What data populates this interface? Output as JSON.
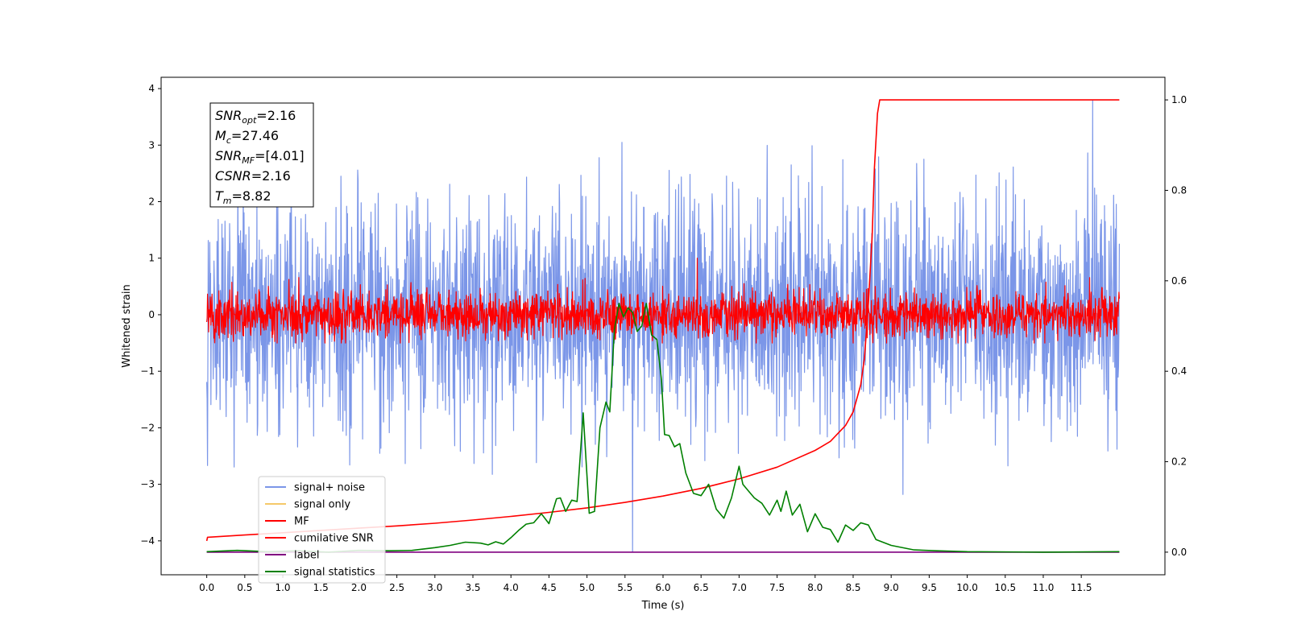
{
  "chart_data": {
    "type": "line",
    "xlabel": "Time (s)",
    "ylabel": "Whitened strain",
    "xlim": [
      -0.6,
      12.6
    ],
    "ylim_left": [
      -4.6,
      4.2
    ],
    "ylim_right": [
      -0.05,
      1.05
    ],
    "x_ticks": [
      0.0,
      0.5,
      1.0,
      1.5,
      2.0,
      2.5,
      3.0,
      3.5,
      4.0,
      4.5,
      5.0,
      5.5,
      6.0,
      6.5,
      7.0,
      7.5,
      8.0,
      8.5,
      9.0,
      9.5,
      10.0,
      10.5,
      11.0,
      11.5
    ],
    "x_tick_labels": [
      "0.0",
      "0.5",
      "1.0",
      "1.5",
      "2.0",
      "2.5",
      "3.0",
      "3.5",
      "4.0",
      "4.5",
      "5.0",
      "5.5",
      "6.0",
      "6.5",
      "7.0",
      "7.5",
      "8.0",
      "8.5",
      "9.0",
      "9.5",
      "10.0",
      "10.5",
      "11.0",
      "11.5"
    ],
    "y_ticks_left": [
      -4,
      -3,
      -2,
      -1,
      0,
      1,
      2,
      3,
      4
    ],
    "y_tick_labels_left": [
      "−4",
      "−3",
      "−2",
      "−1",
      "0",
      "1",
      "2",
      "3",
      "4"
    ],
    "y_ticks_right": [
      0.0,
      0.2,
      0.4,
      0.6,
      0.8,
      1.0
    ],
    "y_tick_labels_right": [
      "0.0",
      "0.2",
      "0.4",
      "0.6",
      "0.8",
      "1.0"
    ],
    "legend_position": "lower-left",
    "annotation": {
      "lines": [
        {
          "sym": "SNR",
          "sub": "opt",
          "rest": "=2.16"
        },
        {
          "sym": "M",
          "sub": "c",
          "rest": "=27.46"
        },
        {
          "sym": "SNR",
          "sub": "MF",
          "rest": "=[4.01]"
        },
        {
          "sym": "CSNR",
          "sub": "",
          "rest": "=2.16"
        },
        {
          "sym": "T",
          "sub": "m",
          "rest": "=8.82"
        }
      ]
    },
    "series": [
      {
        "name": "signal+ noise",
        "color": "#7b96e8",
        "axis": "left",
        "kind": "noise",
        "x_range": [
          0.0,
          12.0
        ],
        "sigma": 1.0,
        "range": [
          -3.3,
          3.4
        ],
        "spikes": [
          {
            "x": 5.6,
            "y": -4.2
          },
          {
            "x": 11.65,
            "y": 3.8
          }
        ]
      },
      {
        "name": "signal only",
        "color": "#f5c869",
        "axis": "left",
        "kind": "hidden",
        "x": [],
        "y": []
      },
      {
        "name": "MF",
        "color": "#ff0000",
        "axis": "left",
        "kind": "noise",
        "x_range": [
          0.0,
          12.0
        ],
        "sigma": 0.2,
        "range": [
          -0.5,
          0.85
        ],
        "spikes": [
          {
            "x": 6.45,
            "y": 1.0
          }
        ]
      },
      {
        "name": "cumilative SNR",
        "color": "#ff0000",
        "axis": "right",
        "kind": "line",
        "x": [
          0.0,
          0.01,
          0.5,
          1.0,
          1.5,
          2.0,
          2.5,
          3.0,
          3.5,
          4.0,
          4.5,
          5.0,
          5.5,
          6.0,
          6.5,
          7.0,
          7.5,
          8.0,
          8.2,
          8.4,
          8.5,
          8.6,
          8.65,
          8.7,
          8.75,
          8.78,
          8.82,
          8.85,
          9.0,
          10.0,
          11.0,
          12.0
        ],
        "y": [
          0.025,
          0.033,
          0.038,
          0.043,
          0.048,
          0.053,
          0.058,
          0.064,
          0.071,
          0.079,
          0.088,
          0.098,
          0.11,
          0.124,
          0.141,
          0.162,
          0.188,
          0.225,
          0.245,
          0.28,
          0.31,
          0.37,
          0.43,
          0.55,
          0.7,
          0.85,
          0.97,
          1.0,
          1.0,
          1.0,
          1.0,
          1.0
        ]
      },
      {
        "name": "label",
        "color": "#800080",
        "axis": "right",
        "kind": "line",
        "x": [
          0.0,
          12.0
        ],
        "y": [
          0.0,
          0.0
        ]
      },
      {
        "name": "signal statistics",
        "color": "#008000",
        "axis": "right",
        "kind": "line",
        "x": [
          0.0,
          0.4,
          0.8,
          1.2,
          1.6,
          2.0,
          2.4,
          2.7,
          3.0,
          3.2,
          3.4,
          3.6,
          3.7,
          3.8,
          3.9,
          4.0,
          4.1,
          4.2,
          4.3,
          4.4,
          4.5,
          4.6,
          4.65,
          4.72,
          4.8,
          4.87,
          4.95,
          5.03,
          5.1,
          5.17,
          5.25,
          5.3,
          5.36,
          5.42,
          5.48,
          5.54,
          5.6,
          5.66,
          5.72,
          5.78,
          5.85,
          5.92,
          5.98,
          6.02,
          6.08,
          6.15,
          6.22,
          6.3,
          6.4,
          6.5,
          6.6,
          6.7,
          6.8,
          6.9,
          7.0,
          7.05,
          7.1,
          7.2,
          7.3,
          7.4,
          7.5,
          7.55,
          7.62,
          7.7,
          7.8,
          7.9,
          8.0,
          8.1,
          8.2,
          8.3,
          8.4,
          8.5,
          8.6,
          8.7,
          8.8,
          9.0,
          9.3,
          9.6,
          10.0,
          11.0,
          12.0
        ],
        "y": [
          0.001,
          0.004,
          0.001,
          0.003,
          0.0,
          0.004,
          0.003,
          0.004,
          0.01,
          0.015,
          0.022,
          0.02,
          0.016,
          0.023,
          0.018,
          0.032,
          0.048,
          0.062,
          0.065,
          0.085,
          0.063,
          0.118,
          0.12,
          0.09,
          0.115,
          0.112,
          0.308,
          0.086,
          0.09,
          0.275,
          0.332,
          0.31,
          0.492,
          0.55,
          0.52,
          0.54,
          0.53,
          0.488,
          0.5,
          0.55,
          0.48,
          0.47,
          0.38,
          0.26,
          0.258,
          0.233,
          0.24,
          0.175,
          0.13,
          0.125,
          0.15,
          0.095,
          0.075,
          0.12,
          0.19,
          0.15,
          0.14,
          0.12,
          0.108,
          0.082,
          0.115,
          0.09,
          0.135,
          0.082,
          0.106,
          0.045,
          0.085,
          0.055,
          0.05,
          0.022,
          0.06,
          0.048,
          0.065,
          0.06,
          0.028,
          0.015,
          0.005,
          0.003,
          0.001,
          0.0,
          0.001
        ]
      }
    ]
  }
}
